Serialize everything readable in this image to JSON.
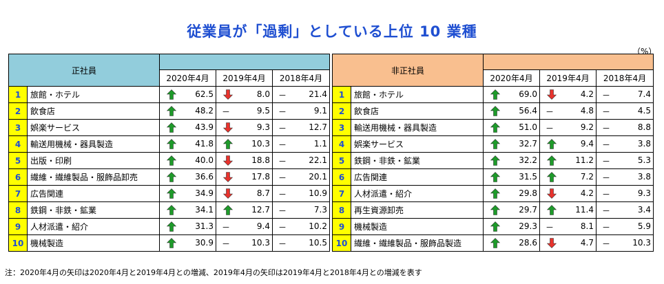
{
  "title": "従業員が「過剰」としている上位 10 業種",
  "unit": "（%）",
  "columns": [
    "2020年4月",
    "2019年4月",
    "2018年4月"
  ],
  "left": {
    "header": "正社員",
    "rows": [
      {
        "rank": "1",
        "name": "旅館・ホテル",
        "v2020": "62.5",
        "a2020": "up",
        "v2019": "8.0",
        "a2019": "down",
        "v2018": "21.4"
      },
      {
        "rank": "2",
        "name": "飲食店",
        "v2020": "48.2",
        "a2020": "up",
        "v2019": "9.5",
        "a2019": "dash",
        "v2018": "9.1"
      },
      {
        "rank": "3",
        "name": "娯楽サービス",
        "v2020": "43.9",
        "a2020": "up",
        "v2019": "9.3",
        "a2019": "down",
        "v2018": "12.7"
      },
      {
        "rank": "4",
        "name": "輸送用機械・器具製造",
        "v2020": "41.8",
        "a2020": "up",
        "v2019": "10.3",
        "a2019": "up",
        "v2018": "1.1"
      },
      {
        "rank": "5",
        "name": "出版・印刷",
        "v2020": "40.0",
        "a2020": "up",
        "v2019": "18.8",
        "a2019": "down",
        "v2018": "22.1"
      },
      {
        "rank": "6",
        "name": "繊維・繊維製品・服飾品卸売",
        "v2020": "36.6",
        "a2020": "up",
        "v2019": "17.8",
        "a2019": "down",
        "v2018": "20.1"
      },
      {
        "rank": "7",
        "name": "広告関連",
        "v2020": "34.9",
        "a2020": "up",
        "v2019": "8.7",
        "a2019": "down",
        "v2018": "10.9"
      },
      {
        "rank": "8",
        "name": "鉄鋼・非鉄・鉱業",
        "v2020": "34.1",
        "a2020": "up",
        "v2019": "12.7",
        "a2019": "up",
        "v2018": "7.3"
      },
      {
        "rank": "9",
        "name": "人材派遣・紹介",
        "v2020": "31.3",
        "a2020": "up",
        "v2019": "9.4",
        "a2019": "dash",
        "v2018": "10.2"
      },
      {
        "rank": "10",
        "name": "機械製造",
        "v2020": "30.9",
        "a2020": "up",
        "v2019": "10.3",
        "a2019": "dash",
        "v2018": "10.5"
      }
    ]
  },
  "right": {
    "header": "非正社員",
    "rows": [
      {
        "rank": "1",
        "name": "旅館・ホテル",
        "v2020": "69.0",
        "a2020": "up",
        "v2019": "4.2",
        "a2019": "down",
        "v2018": "7.4"
      },
      {
        "rank": "2",
        "name": "飲食店",
        "v2020": "56.4",
        "a2020": "up",
        "v2019": "4.8",
        "a2019": "dash",
        "v2018": "4.5"
      },
      {
        "rank": "3",
        "name": "輸送用機械・器具製造",
        "v2020": "51.0",
        "a2020": "up",
        "v2019": "9.2",
        "a2019": "dash",
        "v2018": "8.8"
      },
      {
        "rank": "4",
        "name": "娯楽サービス",
        "v2020": "32.7",
        "a2020": "up",
        "v2019": "9.4",
        "a2019": "up",
        "v2018": "3.8"
      },
      {
        "rank": "5",
        "name": "鉄鋼・非鉄・鉱業",
        "v2020": "32.2",
        "a2020": "up",
        "v2019": "11.2",
        "a2019": "up",
        "v2018": "5.3"
      },
      {
        "rank": "6",
        "name": "広告関連",
        "v2020": "31.5",
        "a2020": "up",
        "v2019": "7.2",
        "a2019": "up",
        "v2018": "3.8"
      },
      {
        "rank": "7",
        "name": "人材派遣・紹介",
        "v2020": "29.8",
        "a2020": "up",
        "v2019": "4.2",
        "a2019": "down",
        "v2018": "9.3"
      },
      {
        "rank": "8",
        "name": "再生資源卸売",
        "v2020": "29.7",
        "a2020": "up",
        "v2019": "11.4",
        "a2019": "up",
        "v2018": "3.4"
      },
      {
        "rank": "9",
        "name": "機械製造",
        "v2020": "29.3",
        "a2020": "up",
        "v2019": "8.1",
        "a2019": "dash",
        "v2018": "5.9"
      },
      {
        "rank": "10",
        "name": "繊維・繊維製品・服飾品製造",
        "v2020": "28.6",
        "a2020": "up",
        "v2019": "4.7",
        "a2019": "down",
        "v2018": "10.3"
      }
    ]
  },
  "dash_symbol": "－",
  "colors": {
    "up": "#1e9b2a",
    "down": "#e8332d",
    "title": "#1f4fd1",
    "rank_bg": "#ffff00",
    "left_header": "#92cddc",
    "right_header": "#f9bf8f"
  },
  "note": "注：2020年4月の矢印は2020年4月と2019年4月との増減、2019年4月の矢印は2019年4月と2018年4月との増減を表す"
}
